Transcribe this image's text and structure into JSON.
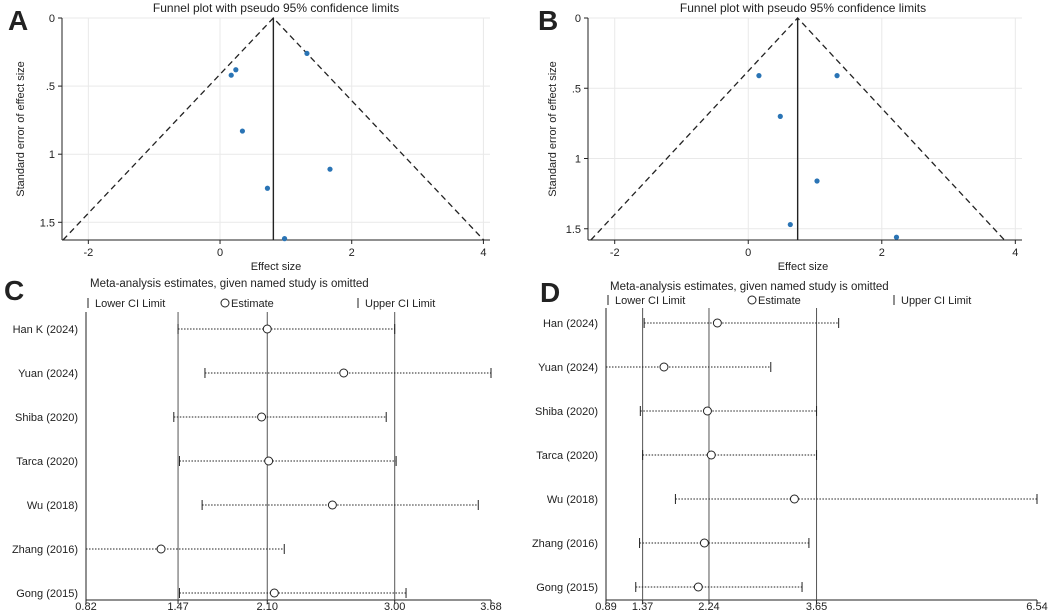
{
  "chart_data": [
    {
      "panel_label": "A",
      "type": "scatter",
      "subtype": "funnel",
      "title": "Funnel plot with pseudo 95% confidence limits",
      "xlabel": "Effect size",
      "ylabel": "Standard error of effect size",
      "xlim": [
        -2.4,
        4.1
      ],
      "ylim": [
        0,
        1.63
      ],
      "y_reversed": true,
      "xticks": [
        -2,
        0,
        2,
        4
      ],
      "xtick_labels": [
        "-2",
        "0",
        "2",
        "4"
      ],
      "yticks": [
        0,
        0.5,
        1,
        1.5
      ],
      "ytick_labels": [
        "0",
        ".5",
        "1",
        "1.5"
      ],
      "pooled_effect": 0.81,
      "funnel_max_se": 1.63,
      "points": [
        {
          "x": 1.32,
          "y": 0.26
        },
        {
          "x": 0.24,
          "y": 0.38
        },
        {
          "x": 0.17,
          "y": 0.42
        },
        {
          "x": 0.34,
          "y": 0.83
        },
        {
          "x": 1.67,
          "y": 1.11
        },
        {
          "x": 0.72,
          "y": 1.25
        },
        {
          "x": 0.98,
          "y": 1.62
        }
      ]
    },
    {
      "panel_label": "B",
      "type": "scatter",
      "subtype": "funnel",
      "title": "Funnel plot with pseudo 95% confidence limits",
      "xlabel": "Effect size",
      "ylabel": "Standard error of effect size",
      "xlim": [
        -2.4,
        4.1
      ],
      "ylim": [
        0,
        1.58
      ],
      "y_reversed": true,
      "xticks": [
        -2,
        0,
        2,
        4
      ],
      "xtick_labels": [
        "-2",
        "0",
        "2",
        "4"
      ],
      "yticks": [
        0,
        0.5,
        1,
        1.5
      ],
      "ytick_labels": [
        "0",
        ".5",
        "1",
        "1.5"
      ],
      "pooled_effect": 0.74,
      "funnel_max_se": 1.58,
      "points": [
        {
          "x": 0.16,
          "y": 0.41
        },
        {
          "x": 1.33,
          "y": 0.41
        },
        {
          "x": 0.48,
          "y": 0.7
        },
        {
          "x": 1.03,
          "y": 1.16
        },
        {
          "x": 0.63,
          "y": 1.47
        },
        {
          "x": 2.22,
          "y": 1.56
        }
      ]
    },
    {
      "panel_label": "C",
      "type": "forest",
      "title": "Meta-analysis estimates, given named study is omitted",
      "legend": [
        "Lower CI Limit",
        "Estimate",
        "Upper CI Limit"
      ],
      "xlim": [
        0.82,
        3.68
      ],
      "xticks": [
        0.82,
        1.47,
        2.1,
        3.0,
        3.68
      ],
      "xtick_labels": [
        "0.82",
        "1.47",
        "2.10",
        "3.00",
        "3.68"
      ],
      "reference_lines": [
        1.47,
        2.1,
        3.0
      ],
      "studies": [
        {
          "label": "Han K (2024)",
          "lower": 1.47,
          "estimate": 2.1,
          "upper": 3.0
        },
        {
          "label": "Yuan (2024)",
          "lower": 1.66,
          "estimate": 2.64,
          "upper": 3.68
        },
        {
          "label": "Shiba (2020)",
          "lower": 1.44,
          "estimate": 2.06,
          "upper": 2.94
        },
        {
          "label": "Tarca (2020)",
          "lower": 1.48,
          "estimate": 2.11,
          "upper": 3.01
        },
        {
          "label": "Wu (2018)",
          "lower": 1.64,
          "estimate": 2.56,
          "upper": 3.59
        },
        {
          "label": "Zhang (2016)",
          "lower": 0.82,
          "estimate": 1.35,
          "upper": 2.22
        },
        {
          "label": "Gong (2015)",
          "lower": 1.48,
          "estimate": 2.15,
          "upper": 3.08
        }
      ]
    },
    {
      "panel_label": "D",
      "type": "forest",
      "title": "Meta-analysis estimates, given named study is omitted",
      "legend": [
        "Lower CI Limit",
        "Estimate",
        "Upper CI Limit"
      ],
      "xlim": [
        0.89,
        6.54
      ],
      "xticks": [
        0.89,
        1.37,
        2.24,
        3.65,
        6.54
      ],
      "xtick_labels": [
        "0.89",
        "1.37",
        "2.24",
        "3.65",
        "6.54"
      ],
      "reference_lines": [
        1.37,
        2.24,
        3.65
      ],
      "studies": [
        {
          "label": "Han (2024)",
          "lower": 1.39,
          "estimate": 2.35,
          "upper": 3.94
        },
        {
          "label": "Yuan (2024)",
          "lower": 0.89,
          "estimate": 1.65,
          "upper": 3.05
        },
        {
          "label": "Shiba (2020)",
          "lower": 1.34,
          "estimate": 2.22,
          "upper": 3.65
        },
        {
          "label": "Tarca (2020)",
          "lower": 1.37,
          "estimate": 2.27,
          "upper": 3.65
        },
        {
          "label": "Wu (2018)",
          "lower": 1.8,
          "estimate": 3.36,
          "upper": 6.54
        },
        {
          "label": "Zhang (2016)",
          "lower": 1.33,
          "estimate": 2.18,
          "upper": 3.55
        },
        {
          "label": "Gong (2015)",
          "lower": 1.28,
          "estimate": 2.1,
          "upper": 3.46
        }
      ]
    }
  ],
  "colors": {
    "point": "#2a74b5",
    "line": "#222222",
    "grid": "#e9e9e9"
  }
}
